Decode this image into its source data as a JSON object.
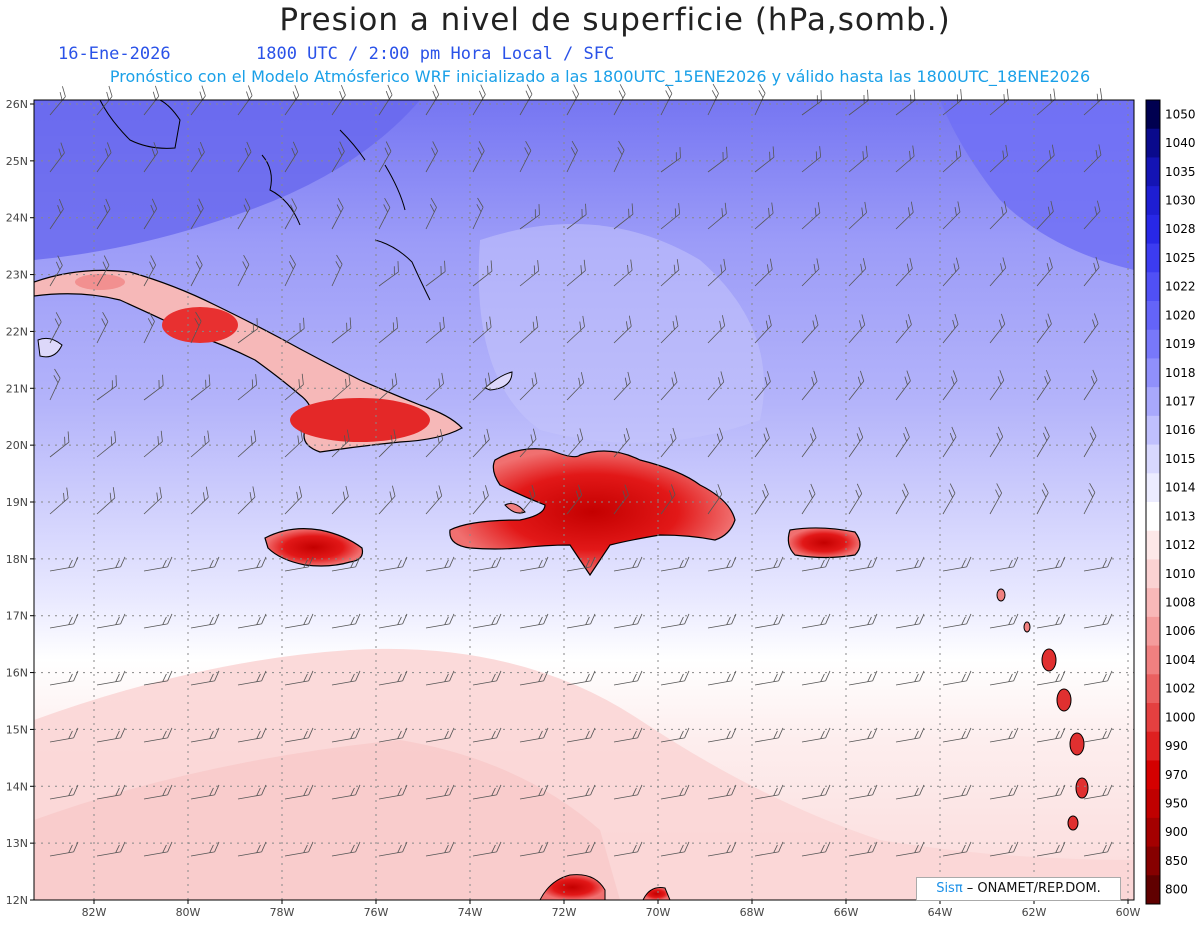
{
  "header": {
    "title": "Presion a nivel de superficie (hPa,somb.)",
    "date": "16-Ene-2026",
    "time": "1800 UTC / 2:00 pm Hora Local / SFC",
    "model_line": "Pronóstico con el Modelo Atmósferico WRF inicializado a las 1800UTC_15ENE2026 y válido hasta las  1800UTC_18ENE2026"
  },
  "axes": {
    "lat_labels": [
      "26N",
      "25N",
      "24N",
      "23N",
      "22N",
      "21N",
      "20N",
      "19N",
      "18N",
      "17N",
      "16N",
      "15N",
      "14N",
      "13N",
      "12N"
    ],
    "lon_labels": [
      "82W",
      "80W",
      "78W",
      "76W",
      "74W",
      "72W",
      "70W",
      "68W",
      "66W",
      "64W",
      "62W",
      "60W"
    ]
  },
  "colorbar": {
    "levels": [
      "1050",
      "1040",
      "1035",
      "1030",
      "1028",
      "1025",
      "1022",
      "1020",
      "1019",
      "1018",
      "1017",
      "1016",
      "1015",
      "1014",
      "1013",
      "1012",
      "1010",
      "1008",
      "1006",
      "1004",
      "1002",
      "1000",
      "990",
      "970",
      "950",
      "900",
      "850",
      "800"
    ],
    "colors": [
      "#000050",
      "#0a0a8c",
      "#1414b4",
      "#1e1ed2",
      "#2828e6",
      "#3c3cf0",
      "#5050f5",
      "#6464f8",
      "#7878fa",
      "#9090fb",
      "#a8a8fc",
      "#c0c0fd",
      "#d8d8fe",
      "#ececff",
      "#ffffff",
      "#fde8e8",
      "#fbd2d2",
      "#f8b8b8",
      "#f49c9c",
      "#f08080",
      "#ea6060",
      "#e44040",
      "#de2020",
      "#d40000",
      "#c00000",
      "#a40000",
      "#860000",
      "#600000"
    ]
  },
  "credit": {
    "brand": "Sisπ",
    "text": " –  ONAMET/REP.DOM."
  }
}
